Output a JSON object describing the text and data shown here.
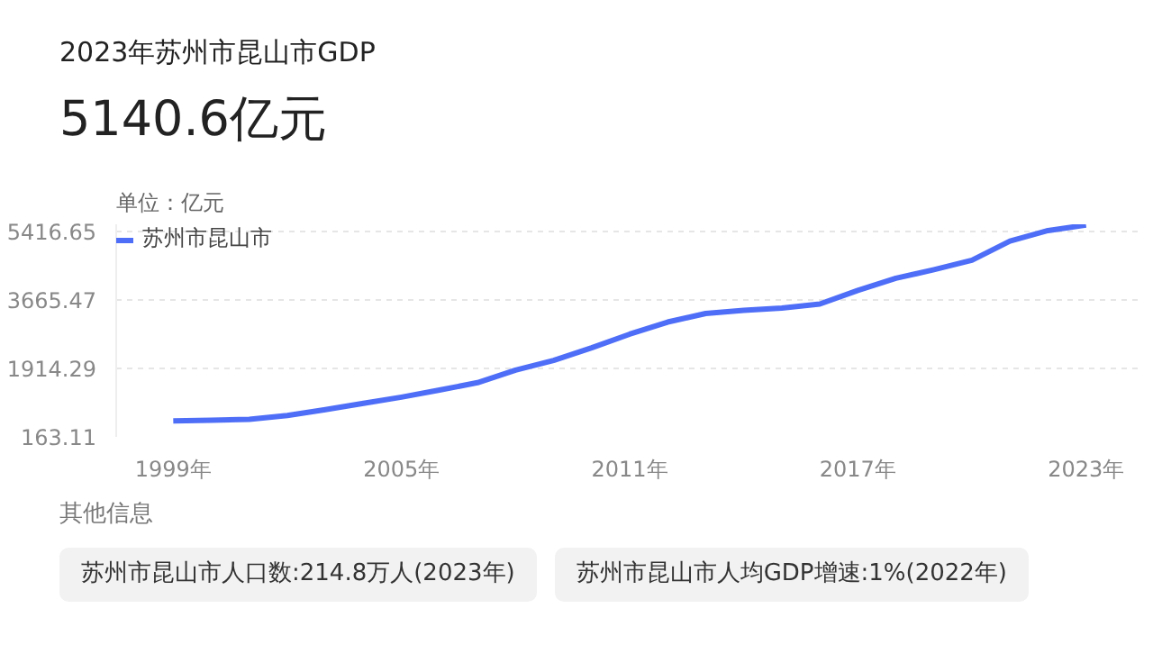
{
  "chart_data": {
    "type": "line",
    "title": "2023年苏州市昆山市GDP",
    "subtitle": "5140.6亿元",
    "ylabel": "单位：亿元",
    "x": [
      1999,
      2000,
      2001,
      2002,
      2003,
      2004,
      2005,
      2006,
      2007,
      2008,
      2009,
      2010,
      2011,
      2012,
      2013,
      2014,
      2015,
      2016,
      2017,
      2018,
      2019,
      2020,
      2021,
      2022,
      2023
    ],
    "series": [
      {
        "name": "苏州市昆山市",
        "color": "#4f6ef7",
        "values": [
          570,
          590,
          610,
          710,
          860,
          1020,
          1180,
          1360,
          1550,
          1870,
          2120,
          2440,
          2790,
          3100,
          3320,
          3400,
          3460,
          3560,
          3910,
          4220,
          4440,
          4680,
          5170,
          5440,
          5580
        ]
      }
    ],
    "xlim": [
      1997.5,
      2024.5
    ],
    "xticks": [
      {
        "value": 1999,
        "label": "1999年"
      },
      {
        "value": 2005,
        "label": "2005年"
      },
      {
        "value": 2011,
        "label": "2011年"
      },
      {
        "value": 2017,
        "label": "2017年"
      },
      {
        "value": 2023,
        "label": "2023年"
      }
    ],
    "ylim": [
      163.11,
      5600
    ],
    "yticks": [
      163.11,
      1914.29,
      3665.47,
      5416.65
    ],
    "grid": "y",
    "legend": "top left",
    "marker": "none",
    "line_style": "solid",
    "annotations": [
      "其他信息",
      "苏州市昆山市人口数:214.8万人(2023年)",
      "苏州市昆山市人均GDP增速:1%(2022年)"
    ]
  }
}
